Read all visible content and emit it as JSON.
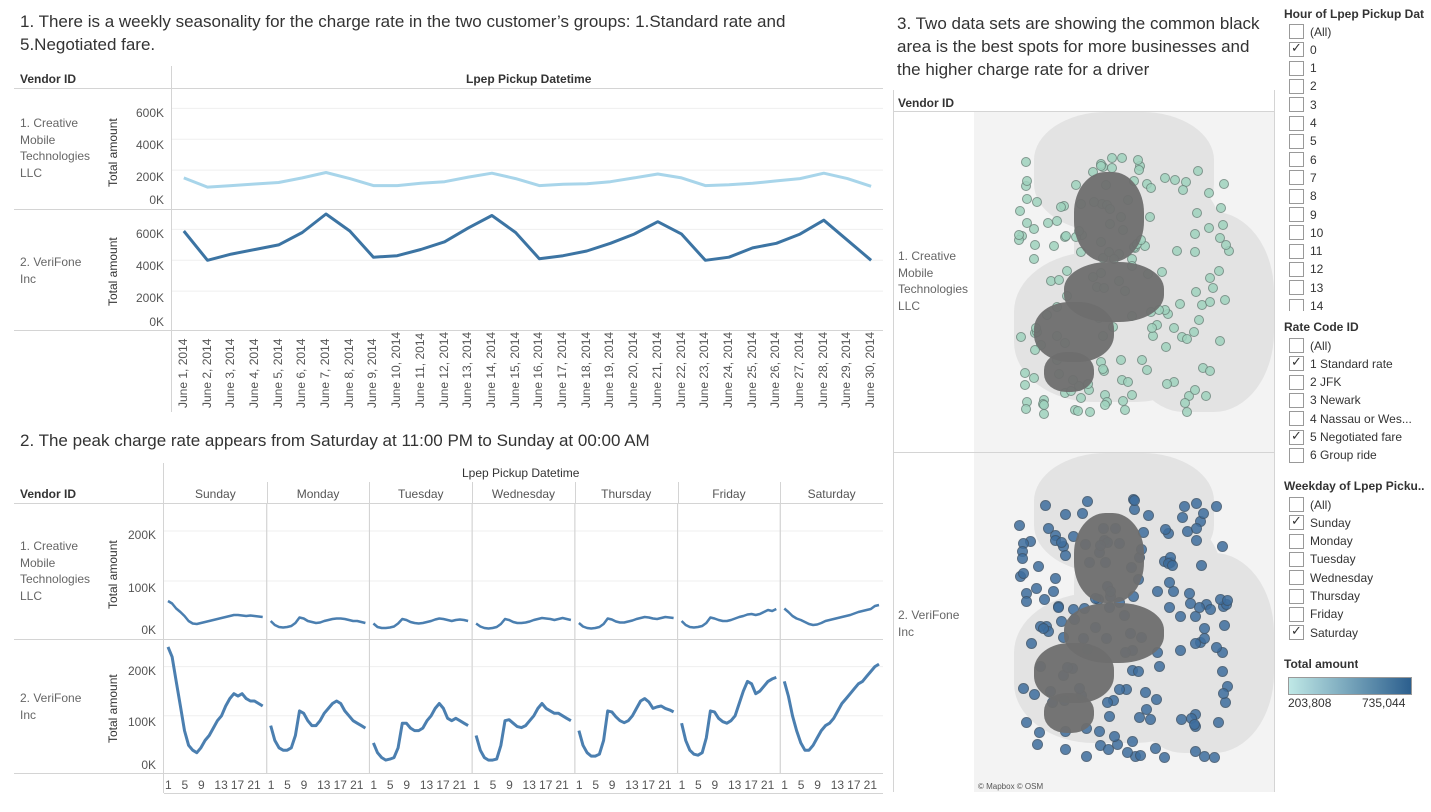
{
  "titles": {
    "t1_line1": "1. There is a weekly seasonality for the charge rate in the two customer’s groups: 1.Standard rate and",
    "t1_line2": "5.Negotiated fare.",
    "t2": "2.  The peak charge rate appears from  Saturday at 11:00 PM to  Sunday at 00:00 AM",
    "t3_line1": "3. Two data sets are showing the common black",
    "t3_line2": "area is the best spots for more businesses and",
    "t3_line3": "the higher charge rate for a driver"
  },
  "headers": {
    "vendor_id": "Vendor ID",
    "pickup_datetime": "Lpep Pickup Datetime",
    "total_amount_axis": "Total amount"
  },
  "vendors": {
    "v1_l1": "1. Creative",
    "v1_l2": "Mobile",
    "v1_l3": "Technologies",
    "v1_l4": "LLC",
    "v2_l1": "2. VeriFone",
    "v2_l2": "Inc"
  },
  "colors": {
    "series_light": "#a8d5ea",
    "series_dark": "#3c74a3",
    "series_mid": "#4b7fb0",
    "map_green": "#9fd3be",
    "map_blue": "#3e6e9e",
    "map_gray": "#6e6e6e",
    "legend_start": "#bfe8e6",
    "legend_end": "#2c5f8e"
  },
  "chart_data": [
    {
      "type": "line",
      "title": "1. There is a weekly seasonality for the charge rate in the two customer’s groups: 1.Standard rate and 5.Negotiated fare.",
      "xlabel": "Lpep Pickup Datetime",
      "ylabel": "Total amount",
      "x": [
        "June 1, 2014",
        "June 2, 2014",
        "June 3, 2014",
        "June 4, 2014",
        "June 5, 2014",
        "June 6, 2014",
        "June 7, 2014",
        "June 8, 2014",
        "June 9, 2014",
        "June 10, 2014",
        "June 11, 2014",
        "June 12, 2014",
        "June 13, 2014",
        "June 14, 2014",
        "June 15, 2014",
        "June 16, 2014",
        "June 17, 2014",
        "June 18, 2014",
        "June 19, 2014",
        "June 20, 2014",
        "June 21, 2014",
        "June 22, 2014",
        "June 23, 2014",
        "June 24, 2014",
        "June 25, 2014",
        "June 26, 2014",
        "June 27, 2014",
        "June 28, 2014",
        "June 29, 2014",
        "June 30, 2014"
      ],
      "yticks": [
        "0K",
        "200K",
        "400K",
        "600K"
      ],
      "ylim": [
        0,
        700000
      ],
      "series": [
        {
          "name": "1. Creative Mobile Technologies LLC",
          "values": [
            150000,
            90000,
            100000,
            110000,
            120000,
            150000,
            185000,
            145000,
            100000,
            100000,
            115000,
            125000,
            155000,
            180000,
            145000,
            100000,
            108000,
            112000,
            125000,
            150000,
            175000,
            150000,
            100000,
            105000,
            115000,
            130000,
            145000,
            180000,
            145000,
            95000
          ]
        },
        {
          "name": "2. VeriFone Inc",
          "values": [
            590000,
            400000,
            440000,
            470000,
            500000,
            580000,
            700000,
            590000,
            420000,
            430000,
            470000,
            520000,
            610000,
            690000,
            580000,
            410000,
            430000,
            460000,
            510000,
            570000,
            650000,
            570000,
            400000,
            420000,
            480000,
            510000,
            570000,
            660000,
            530000,
            400000
          ]
        }
      ]
    },
    {
      "type": "line",
      "title": "2.  The peak charge rate appears from  Saturday at 11:00 PM to  Sunday at 00:00 AM",
      "xlabel": "Lpep Pickup Datetime",
      "ylabel": "Total amount",
      "categories": [
        "Sunday",
        "Monday",
        "Tuesday",
        "Wednesday",
        "Thursday",
        "Friday",
        "Saturday"
      ],
      "hour_ticks": [
        "1",
        "5",
        "9",
        "13",
        "17",
        "21"
      ],
      "yticks": [
        "0K",
        "100K",
        "200K"
      ],
      "ylim": [
        0,
        250000
      ],
      "series": [
        {
          "name": "1. Creative Mobile Technologies LLC",
          "values": {
            "Sunday": [
              60000,
              55000,
              45000,
              38000,
              30000,
              20000,
              15000,
              14000,
              16000,
              18000,
              20000,
              22000,
              24000,
              26000,
              28000,
              30000,
              32000,
              32000,
              31000,
              30000,
              31000,
              30000,
              29000,
              28000
            ],
            "Monday": [
              20000,
              12000,
              8000,
              7000,
              8000,
              10000,
              16000,
              27000,
              25000,
              20000,
              18000,
              16000,
              17000,
              20000,
              22000,
              24000,
              25000,
              25000,
              24000,
              22000,
              20000,
              20000,
              18000,
              16000
            ],
            "Tuesday": [
              15000,
              8000,
              6000,
              6000,
              7000,
              9000,
              15000,
              24000,
              22000,
              18000,
              16000,
              15000,
              16000,
              18000,
              20000,
              23000,
              25000,
              24000,
              22000,
              20000,
              22000,
              23000,
              22000,
              20000
            ],
            "Wednesday": [
              15000,
              9000,
              6000,
              5000,
              6000,
              8000,
              14000,
              24000,
              22000,
              18000,
              16000,
              16000,
              17000,
              19000,
              22000,
              24000,
              26000,
              25000,
              24000,
              22000,
              24000,
              26000,
              24000,
              22000
            ],
            "Thursday": [
              16000,
              9000,
              6000,
              5000,
              6000,
              8000,
              14000,
              25000,
              23000,
              19000,
              17000,
              17000,
              19000,
              21000,
              24000,
              26000,
              28000,
              27000,
              25000,
              24000,
              26000,
              28000,
              27000,
              26000
            ],
            "Friday": [
              20000,
              12000,
              8000,
              7000,
              8000,
              10000,
              16000,
              27000,
              25000,
              22000,
              20000,
              20000,
              22000,
              25000,
              28000,
              30000,
              33000,
              34000,
              32000,
              34000,
              38000,
              42000,
              40000,
              44000
            ],
            "Saturday": [
              45000,
              38000,
              30000,
              25000,
              22000,
              18000,
              14000,
              12000,
              13000,
              16000,
              20000,
              22000,
              24000,
              26000,
              28000,
              30000,
              32000,
              35000,
              38000,
              40000,
              42000,
              44000,
              50000,
              52000
            ]
          }
        },
        {
          "name": "2. VeriFone Inc",
          "values": {
            "Sunday": [
              240000,
              220000,
              170000,
              120000,
              70000,
              40000,
              30000,
              25000,
              35000,
              50000,
              60000,
              75000,
              90000,
              100000,
              120000,
              135000,
              145000,
              140000,
              145000,
              135000,
              130000,
              130000,
              125000,
              120000
            ],
            "Monday": [
              80000,
              50000,
              35000,
              30000,
              30000,
              35000,
              60000,
              110000,
              105000,
              90000,
              80000,
              80000,
              90000,
              105000,
              115000,
              125000,
              130000,
              125000,
              110000,
              100000,
              90000,
              85000,
              80000,
              75000
            ],
            "Tuesday": [
              45000,
              25000,
              15000,
              10000,
              12000,
              15000,
              35000,
              85000,
              85000,
              75000,
              70000,
              70000,
              75000,
              90000,
              100000,
              115000,
              125000,
              115000,
              95000,
              90000,
              95000,
              90000,
              85000,
              80000
            ],
            "Wednesday": [
              60000,
              30000,
              15000,
              10000,
              10000,
              12000,
              40000,
              90000,
              92000,
              85000,
              78000,
              76000,
              80000,
              90000,
              100000,
              115000,
              125000,
              115000,
              110000,
              105000,
              105000,
              100000,
              95000,
              90000
            ],
            "Thursday": [
              70000,
              40000,
              25000,
              18000,
              18000,
              22000,
              50000,
              110000,
              108000,
              98000,
              90000,
              86000,
              90000,
              100000,
              115000,
              130000,
              135000,
              128000,
              115000,
              118000,
              120000,
              115000,
              112000,
              108000
            ],
            "Friday": [
              85000,
              50000,
              30000,
              22000,
              20000,
              25000,
              55000,
              110000,
              108000,
              95000,
              88000,
              85000,
              90000,
              100000,
              125000,
              150000,
              170000,
              165000,
              145000,
              150000,
              160000,
              170000,
              175000,
              178000
            ],
            "Saturday": [
              170000,
              140000,
              100000,
              70000,
              45000,
              30000,
              30000,
              40000,
              55000,
              70000,
              80000,
              85000,
              95000,
              110000,
              125000,
              135000,
              145000,
              155000,
              165000,
              170000,
              180000,
              190000,
              200000,
              205000
            ]
          }
        }
      ]
    }
  ],
  "map": {
    "attribution": "© Mapbox © OSM"
  },
  "filters": {
    "hour": {
      "title": "Hour of Lpep Pickup Dat..",
      "items": [
        {
          "label": "(All)",
          "checked": false
        },
        {
          "label": "0",
          "checked": true
        },
        {
          "label": "1",
          "checked": false
        },
        {
          "label": "2",
          "checked": false
        },
        {
          "label": "3",
          "checked": false
        },
        {
          "label": "4",
          "checked": false
        },
        {
          "label": "5",
          "checked": false
        },
        {
          "label": "6",
          "checked": false
        },
        {
          "label": "7",
          "checked": false
        },
        {
          "label": "8",
          "checked": false
        },
        {
          "label": "9",
          "checked": false
        },
        {
          "label": "10",
          "checked": false
        },
        {
          "label": "11",
          "checked": false
        },
        {
          "label": "12",
          "checked": false
        },
        {
          "label": "13",
          "checked": false
        },
        {
          "label": "14",
          "checked": false
        }
      ]
    },
    "rate": {
      "title": "Rate Code ID",
      "items": [
        {
          "label": "(All)",
          "checked": false
        },
        {
          "label": "1 Standard rate",
          "checked": true
        },
        {
          "label": "2 JFK",
          "checked": false
        },
        {
          "label": "3 Newark",
          "checked": false
        },
        {
          "label": "4 Nassau or Wes...",
          "checked": false
        },
        {
          "label": "5 Negotiated fare",
          "checked": true
        },
        {
          "label": "6 Group ride",
          "checked": false
        }
      ]
    },
    "weekday": {
      "title": "Weekday of Lpep Picku..",
      "items": [
        {
          "label": "(All)",
          "checked": false
        },
        {
          "label": "Sunday",
          "checked": true
        },
        {
          "label": "Monday",
          "checked": false
        },
        {
          "label": "Tuesday",
          "checked": false
        },
        {
          "label": "Wednesday",
          "checked": false
        },
        {
          "label": "Thursday",
          "checked": false
        },
        {
          "label": "Friday",
          "checked": false
        },
        {
          "label": "Saturday",
          "checked": true
        }
      ]
    }
  },
  "legend": {
    "title": "Total amount",
    "min": "203,808",
    "max": "735,044"
  }
}
